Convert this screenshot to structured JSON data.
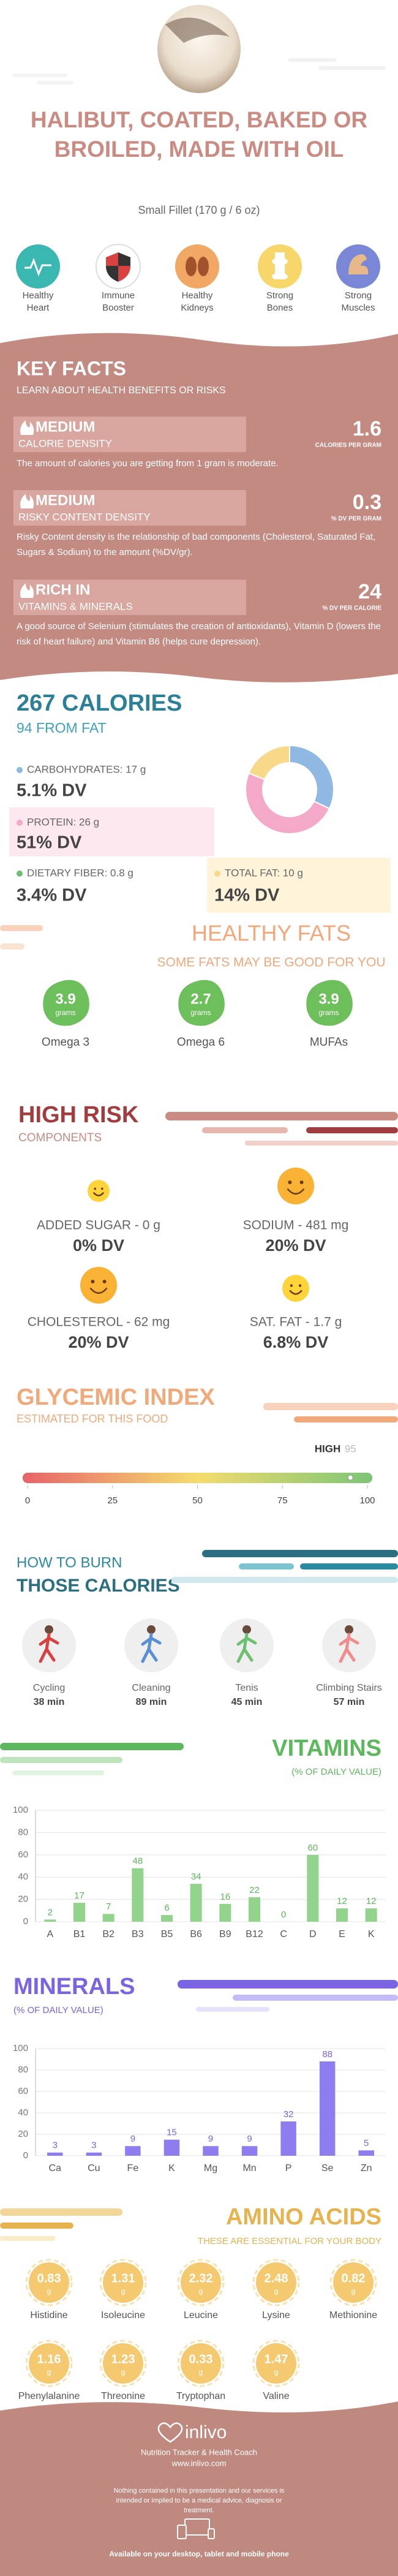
{
  "header": {
    "title": "HALIBUT, COATED, BAKED OR BROILED, MADE WITH OIL",
    "serving": "Small Fillet (170 g / 6 oz)"
  },
  "benefits": [
    "Healthy Heart",
    "Immune Booster",
    "Healthy Kidneys",
    "Strong Bones",
    "Strong Muscles"
  ],
  "key_facts": {
    "title": "KEY FACTS",
    "subtitle": "LEARN ABOUT HEALTH BENEFITS OR RISKS",
    "items": [
      {
        "level": "MEDIUM",
        "name": "CALORIE DENSITY",
        "value": "1.6",
        "unit": "CALORIES PER GRAM",
        "text": "The amount of calories you are getting from 1 gram is moderate."
      },
      {
        "level": "MEDIUM",
        "name": "RISKY CONTENT DENSITY",
        "value": "0.3",
        "unit": "% DV PER GRAM",
        "text": "Risky Content density is the relationship of bad components (Cholesterol, Saturated Fat, Sugars & Sodium) to the amount (%DV/gr)."
      },
      {
        "level": "RICH IN",
        "name": "VITAMINS & MINERALS",
        "value": "24",
        "unit": "% DV PER CALORIE",
        "text": "A good source of Selenium (stimulates the creation of antioxidants), Vitamin D (lowers the risk of heart failure) and Vitamin B6 (helps cure depression)."
      }
    ]
  },
  "calories": {
    "title": "267 CALORIES",
    "subtitle": "94 FROM FAT",
    "items": [
      {
        "label": "CARBOHYDRATES: 17 g",
        "dv": "5.1% DV"
      },
      {
        "label": "PROTEIN: 26 g",
        "dv": "51% DV"
      },
      {
        "label": "DIETARY FIBER: 0.8 g",
        "dv": "3.4% DV"
      },
      {
        "label": "TOTAL FAT: 10 g",
        "dv": "14% DV"
      }
    ]
  },
  "healthy_fats": {
    "title": "HEALTHY FATS",
    "subtitle": "SOME FATS MAY BE GOOD FOR YOU",
    "items": [
      {
        "value": "3.9",
        "unit": "grams",
        "name": "Omega 3"
      },
      {
        "value": "2.7",
        "unit": "grams",
        "name": "Omega 6"
      },
      {
        "value": "3.9",
        "unit": "grams",
        "name": "MUFAs"
      }
    ]
  },
  "high_risk": {
    "title": "HIGH RISK",
    "subtitle": "COMPONENTS",
    "items": [
      {
        "label": "ADDED SUGAR - 0 g",
        "dv": "0% DV"
      },
      {
        "label": "SODIUM - 481 mg",
        "dv": "20% DV"
      },
      {
        "label": "CHOLESTEROL - 62 mg",
        "dv": "20% DV"
      },
      {
        "label": "SAT. FAT - 1.7 g",
        "dv": "6.8% DV"
      }
    ]
  },
  "burn": {
    "title1": "HOW TO BURN",
    "title2": "THOSE CALORIES",
    "items": [
      {
        "name": "Cycling",
        "time": "38 min"
      },
      {
        "name": "Cleaning",
        "time": "89 min"
      },
      {
        "name": "Tenis",
        "time": "45 min"
      },
      {
        "name": "Climbing Stairs",
        "time": "57 min"
      }
    ]
  },
  "amino_acids": {
    "title": "AMINO ACIDS",
    "subtitle": "THESE ARE ESSENTIAL FOR YOUR BODY",
    "items": [
      {
        "value": "0.83",
        "unit": "g",
        "name": "Histidine"
      },
      {
        "value": "1.31",
        "unit": "g",
        "name": "Isoleucine"
      },
      {
        "value": "2.32",
        "unit": "g",
        "name": "Leucine"
      },
      {
        "value": "2.48",
        "unit": "g",
        "name": "Lysine"
      },
      {
        "value": "0.82",
        "unit": "g",
        "name": "Methionine"
      },
      {
        "value": "1.16",
        "unit": "g",
        "name": "Phenylalanine"
      },
      {
        "value": "1.23",
        "unit": "g",
        "name": "Threonine"
      },
      {
        "value": "0.33",
        "unit": "g",
        "name": "Tryptophan"
      },
      {
        "value": "1.47",
        "unit": "g",
        "name": "Valine"
      }
    ]
  },
  "footer": {
    "brand": "inlivo",
    "tagline": "Nutrition Tracker & Health Coach",
    "url": "www.inlivo.com",
    "disclaimer": "Nothing contained in this presentation and our services is intended or implied to be a medical advice, diagnosis or treatment.",
    "available": "Available on your desktop, tablet and mobile phone"
  },
  "chart_data": [
    {
      "type": "donut",
      "values": [
        17,
        26,
        10
      ],
      "colors": [
        "#8fb9e3",
        "#f5a9c8",
        "#f8d98a"
      ]
    },
    {
      "type": "gauge",
      "title": "GLYCEMIC INDEX",
      "subtitle": "ESTIMATED FOR THIS FOOD",
      "label": "HIGH",
      "value": 95,
      "xlim": [
        0,
        100
      ],
      "xticks": [
        0,
        25,
        50,
        75,
        100
      ]
    },
    {
      "type": "bar",
      "title": "VITAMINS",
      "subtitle": "(% OF DAILY VALUE)",
      "categories": [
        "A",
        "B1",
        "B2",
        "B3",
        "B5",
        "B6",
        "B9",
        "B12",
        "C",
        "D",
        "E",
        "K"
      ],
      "values": [
        2,
        17,
        7,
        48,
        6,
        34,
        16,
        22,
        0,
        60,
        12,
        12
      ],
      "color": "#93d48c",
      "label_color": "#5cb85c",
      "ylim": [
        0,
        100
      ],
      "yticks": [
        0,
        20,
        40,
        60,
        80,
        100
      ],
      "grid": true
    },
    {
      "type": "bar",
      "title": "MINERALS",
      "subtitle": "(% OF DAILY VALUE)",
      "categories": [
        "Ca",
        "Cu",
        "Fe",
        "K",
        "Mg",
        "Mn",
        "P",
        "Se",
        "Zn"
      ],
      "values": [
        3,
        3,
        9,
        15,
        9,
        9,
        32,
        88,
        5
      ],
      "color": "#8c7df0",
      "label_color": "#7b63e3",
      "ylim": [
        0,
        100
      ],
      "yticks": [
        0,
        20,
        40,
        60,
        80,
        100
      ],
      "grid": true
    }
  ]
}
